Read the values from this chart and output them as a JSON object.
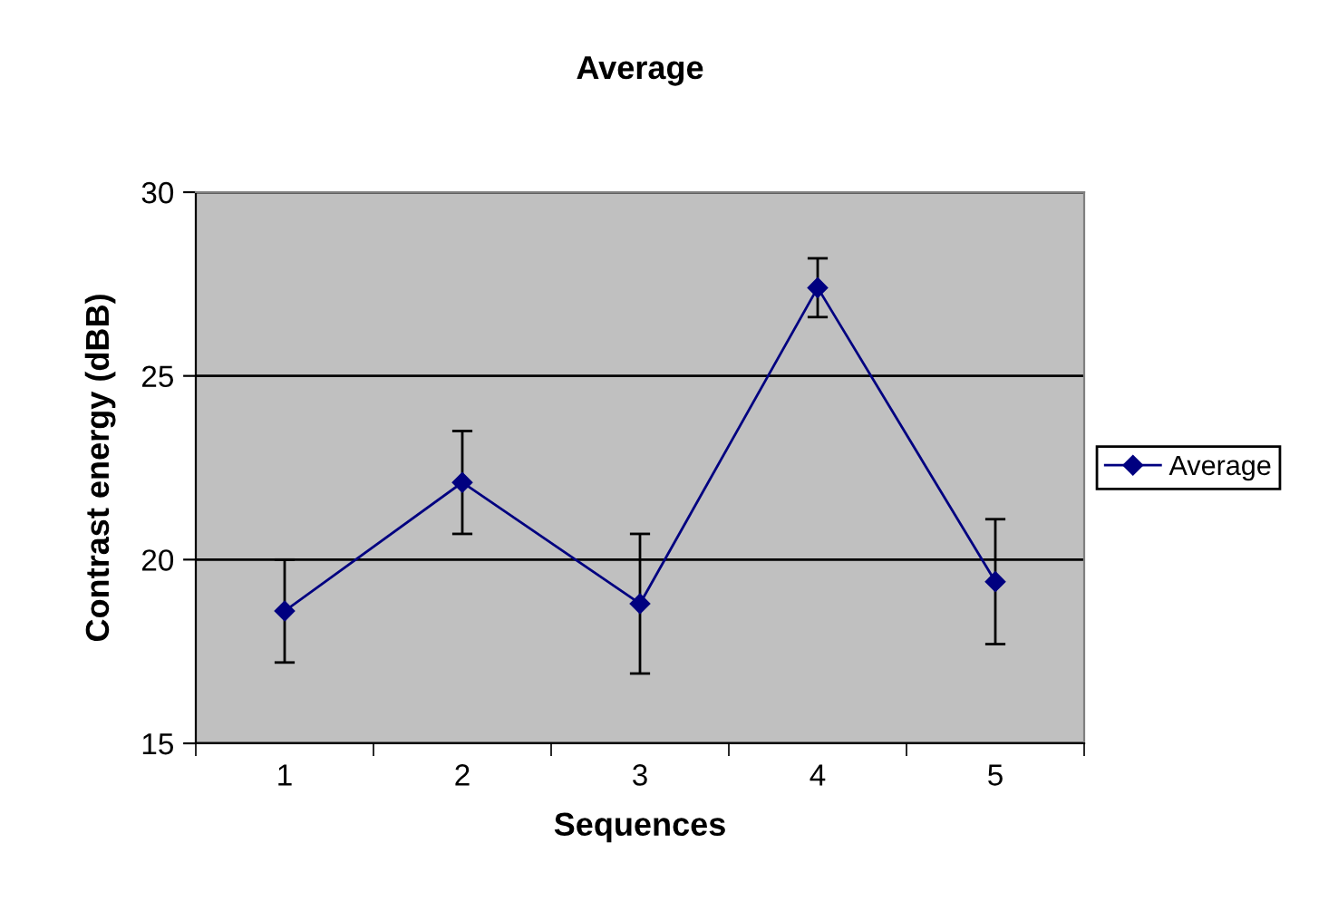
{
  "chart_data": {
    "type": "line",
    "title": "Average",
    "xlabel": "Sequences",
    "ylabel": "Contrast energy (dBB)",
    "categories": [
      "1",
      "2",
      "3",
      "4",
      "5"
    ],
    "series": [
      {
        "name": "Average",
        "color": "#000080",
        "values": [
          18.6,
          22.1,
          18.8,
          27.4,
          19.4
        ],
        "errors": [
          1.4,
          1.4,
          1.9,
          0.8,
          1.7
        ]
      }
    ],
    "ylim": [
      15,
      30
    ],
    "yticks": [
      15,
      20,
      25,
      30
    ],
    "grid": "y",
    "legend": "right",
    "marker": "diamond",
    "line_style": "solid"
  }
}
